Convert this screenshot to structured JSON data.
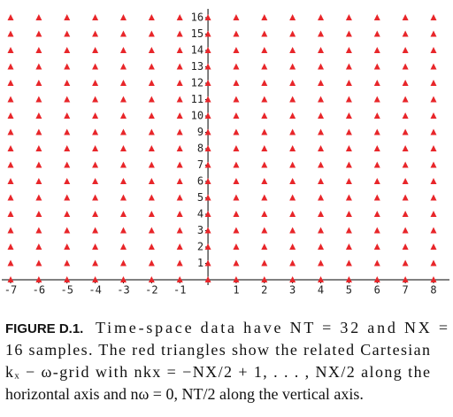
{
  "chart_data": {
    "type": "grid",
    "grid_x": [
      -7,
      -6,
      -5,
      -4,
      -3,
      -2,
      -1,
      0,
      1,
      2,
      3,
      4,
      5,
      6,
      7,
      8
    ],
    "grid_y": [
      0,
      1,
      2,
      3,
      4,
      5,
      6,
      7,
      8,
      9,
      10,
      11,
      12,
      13,
      14,
      15,
      16
    ],
    "color": "#e8262a",
    "xlim": [
      -7,
      8
    ],
    "ylim": [
      0,
      16
    ],
    "xticks": [
      -7,
      -6,
      -5,
      -4,
      -3,
      -2,
      -1,
      1,
      2,
      3,
      4,
      5,
      6,
      7,
      8
    ],
    "yticks": [
      1,
      2,
      3,
      4,
      5,
      6,
      7,
      8,
      9,
      10,
      11,
      12,
      13,
      14,
      15,
      16
    ]
  },
  "caption": {
    "label": "FIGURE D.1.",
    "lines": [
      "Time-space data have NT = 32 and NX =",
      "16 samples. The red triangles show the related Cartesian",
      "kₓ − ω-grid with nkx = −NX/2 + 1, . . . , NX/2 along the",
      "horizontal axis and nω = 0, NT/2 along the vertical axis."
    ]
  }
}
